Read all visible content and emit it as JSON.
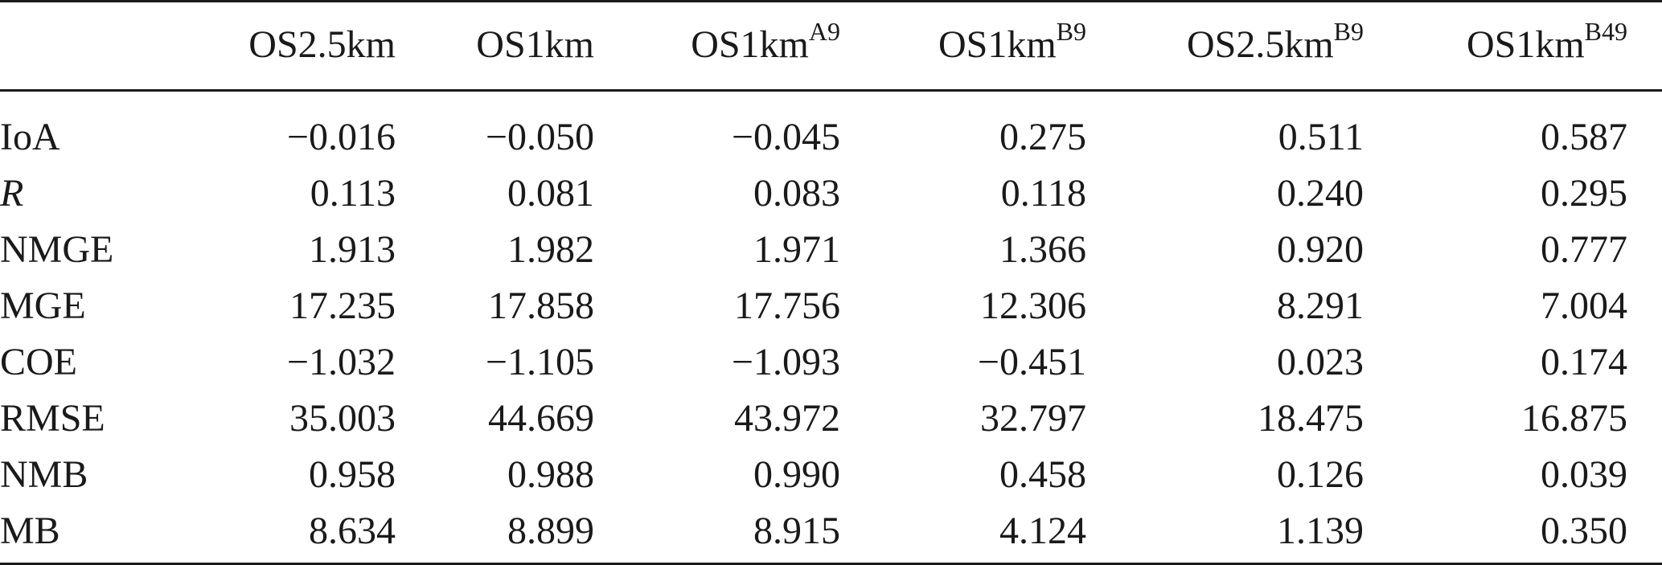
{
  "table": {
    "columns": [
      {
        "base": "OS2.5km",
        "sup": ""
      },
      {
        "base": "OS1km",
        "sup": ""
      },
      {
        "base": "OS1km",
        "sup": "A9"
      },
      {
        "base": "OS1km",
        "sup": "B9"
      },
      {
        "base": "OS2.5km",
        "sup": "B9"
      },
      {
        "base": "OS1km",
        "sup": "B49"
      }
    ],
    "rows": [
      {
        "label": "IoA",
        "values": [
          "−0.016",
          "−0.050",
          "−0.045",
          "0.275",
          "0.511",
          "0.587"
        ]
      },
      {
        "label": "R",
        "values": [
          "0.113",
          "0.081",
          "0.083",
          "0.118",
          "0.240",
          "0.295"
        ]
      },
      {
        "label": "NMGE",
        "values": [
          "1.913",
          "1.982",
          "1.971",
          "1.366",
          "0.920",
          "0.777"
        ]
      },
      {
        "label": "MGE",
        "values": [
          "17.235",
          "17.858",
          "17.756",
          "12.306",
          "8.291",
          "7.004"
        ]
      },
      {
        "label": "COE",
        "values": [
          "−1.032",
          "−1.105",
          "−1.093",
          "−0.451",
          "0.023",
          "0.174"
        ]
      },
      {
        "label": "RMSE",
        "values": [
          "35.003",
          "44.669",
          "43.972",
          "32.797",
          "18.475",
          "16.875"
        ]
      },
      {
        "label": "NMB",
        "values": [
          "0.958",
          "0.988",
          "0.990",
          "0.458",
          "0.126",
          "0.039"
        ]
      },
      {
        "label": "MB",
        "values": [
          "8.634",
          "8.899",
          "8.915",
          "4.124",
          "1.139",
          "0.350"
        ]
      }
    ]
  }
}
